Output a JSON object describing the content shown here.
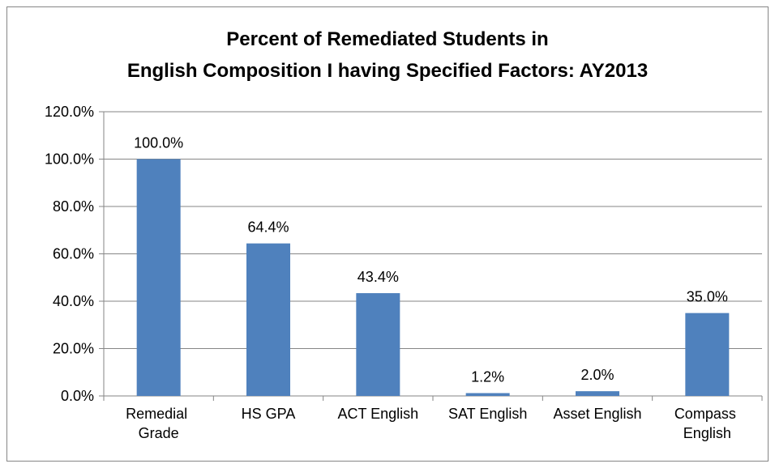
{
  "chart_data": {
    "type": "bar",
    "title": [
      "Percent of Remediated Students in",
      "English Composition I having Specified Factors: AY2013"
    ],
    "categories": [
      "Remedial Grade",
      "HS GPA",
      "ACT English",
      "SAT English",
      "Asset English",
      "Compass English"
    ],
    "values": [
      100,
      64.4,
      43.4,
      1.2,
      2.0,
      35.0
    ],
    "value_labels": [
      "100.0%",
      "64.4%",
      "43.4%",
      "1.2%",
      "2.0%",
      "35.0%"
    ],
    "color": "#4f81bd",
    "ylim": [
      0,
      120
    ],
    "yticks": [
      {
        "value": 0,
        "label": "0.0%"
      },
      {
        "value": 20,
        "label": "20.0%"
      },
      {
        "value": 40,
        "label": "40.0%"
      },
      {
        "value": 60,
        "label": "60.0%"
      },
      {
        "value": 80,
        "label": "80.0%"
      },
      {
        "value": 100,
        "label": "100.0%"
      },
      {
        "value": 120,
        "label": "120.0%"
      }
    ],
    "grid": true
  }
}
